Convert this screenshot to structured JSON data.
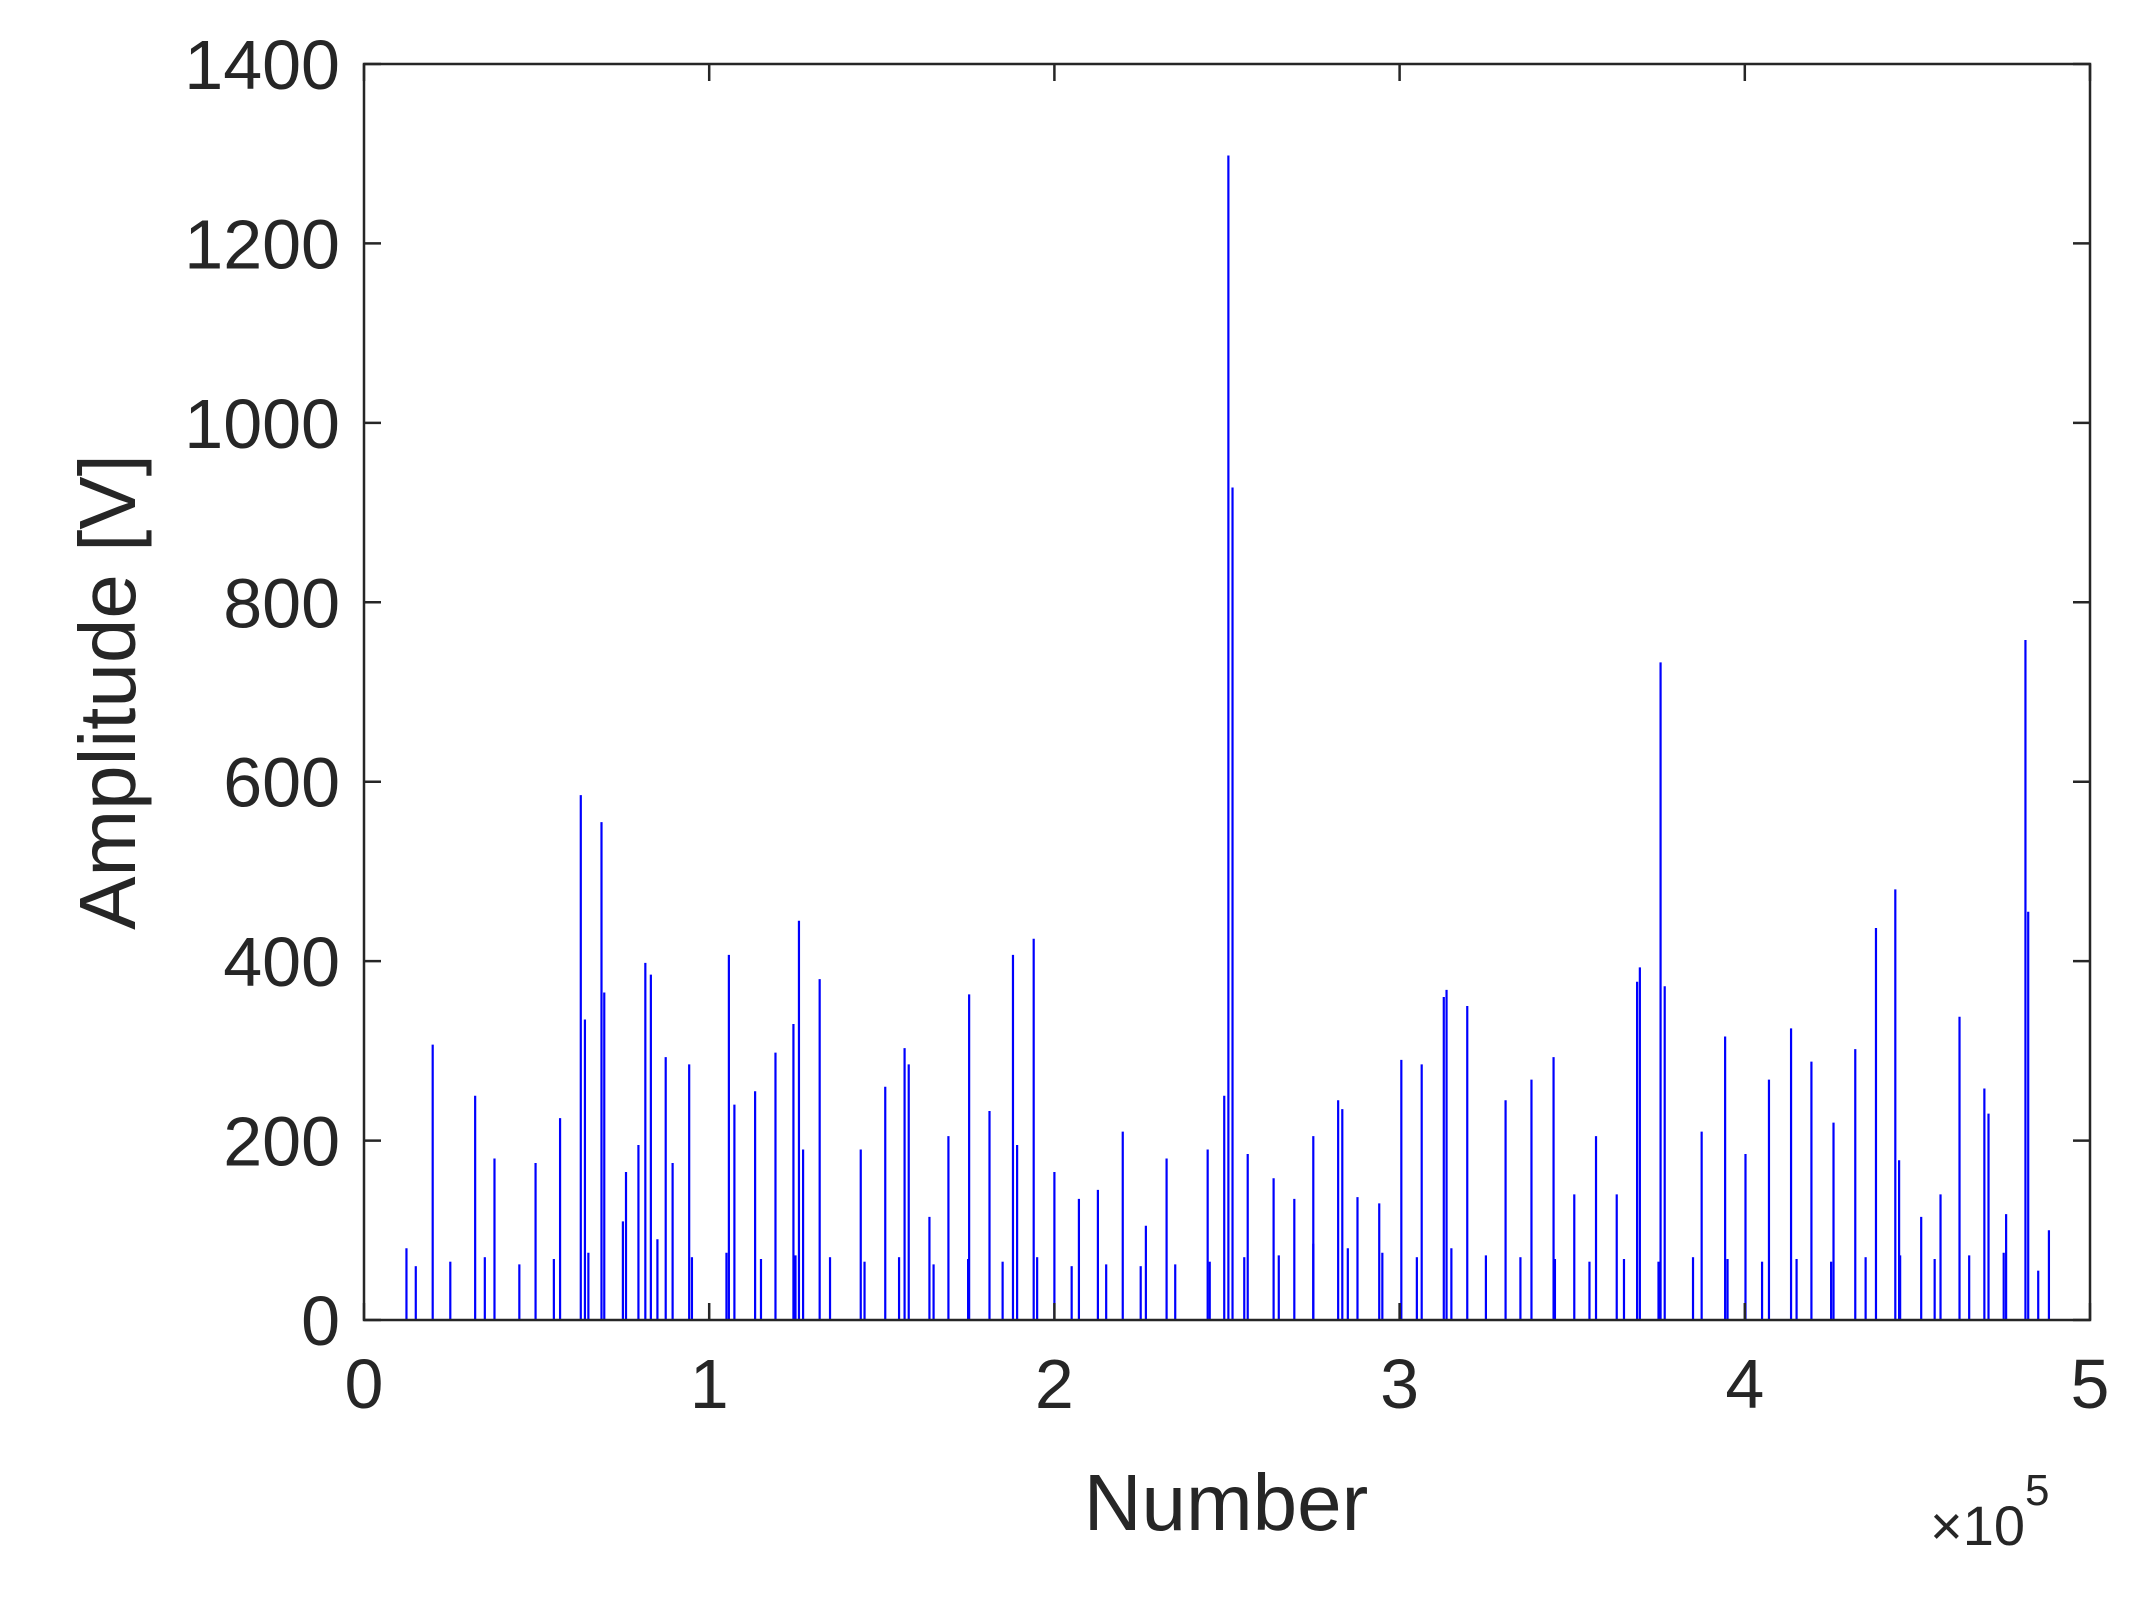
{
  "chart_data": {
    "type": "stem",
    "xlabel": "Number",
    "ylabel": "Amplitude [V]",
    "x_multiplier": "×10",
    "x_multiplier_exponent": "5",
    "color": "#0000ff",
    "xlim": [
      0,
      500000
    ],
    "ylim": [
      0,
      1400
    ],
    "xticks": [
      0,
      {
        "value": 100000,
        "label": "1"
      },
      {
        "value": 200000,
        "label": "2"
      },
      {
        "value": 300000,
        "label": "3"
      },
      {
        "value": 400000,
        "label": "4"
      },
      {
        "value": 500000,
        "label": "5"
      }
    ],
    "yticks": [
      0,
      200,
      400,
      600,
      800,
      1000,
      1200,
      1400
    ],
    "x": [
      12300,
      19900,
      32200,
      37800,
      49700,
      56800,
      62800,
      64000,
      68800,
      69600,
      75900,
      79500,
      81500,
      83100,
      87400,
      89400,
      94200,
      105700,
      107300,
      113300,
      119200,
      124400,
      126000,
      127200,
      132000,
      143900,
      151000,
      156600,
      157800,
      163800,
      169300,
      175300,
      181200,
      188000,
      189200,
      194000,
      200000,
      207100,
      212600,
      219800,
      226500,
      232500,
      244400,
      249200,
      250400,
      251600,
      256000,
      263500,
      269500,
      275000,
      282200,
      283400,
      287800,
      294100,
      300500,
      306400,
      312800,
      313600,
      319600,
      330700,
      338200,
      344600,
      350600,
      356900,
      362900,
      368800,
      369600,
      375600,
      376800,
      387500,
      394300,
      400200,
      407000,
      413400,
      419300,
      425700,
      432000,
      438000,
      443600,
      444700,
      451100,
      456700,
      462200,
      469400,
      470600,
      475700,
      481300,
      482100,
      488100,
      15000,
      25000,
      35000,
      45000,
      55000,
      65000,
      75000,
      85000,
      95000,
      105000,
      115000,
      125000,
      135000,
      145000,
      155000,
      165000,
      175000,
      185000,
      195000,
      205000,
      215000,
      225000,
      235000,
      245000,
      255000,
      265000,
      275000,
      285000,
      295000,
      305000,
      315000,
      325000,
      335000,
      345000,
      355000,
      365000,
      375000,
      385000,
      395000,
      405000,
      415000,
      425000,
      435000,
      445000,
      455000,
      465000,
      475000,
      485000
    ],
    "values": [
      80,
      307,
      250,
      180,
      175,
      225,
      585,
      335,
      555,
      365,
      165,
      195,
      398,
      385,
      293,
      175,
      285,
      407,
      240,
      255,
      298,
      330,
      445,
      190,
      380,
      190,
      260,
      303,
      285,
      115,
      205,
      363,
      233,
      407,
      195,
      425,
      165,
      135,
      145,
      210,
      105,
      180,
      190,
      250,
      1298,
      928,
      185,
      158,
      135,
      205,
      245,
      235,
      137,
      130,
      290,
      285,
      360,
      368,
      350,
      245,
      268,
      293,
      140,
      205,
      140,
      377,
      393,
      733,
      372,
      210,
      316,
      185,
      268,
      325,
      288,
      220,
      302,
      437,
      480,
      178,
      115,
      140,
      338,
      258,
      230,
      118,
      758,
      455,
      100,
      60,
      65,
      70,
      62,
      68,
      75,
      110,
      90,
      70,
      75,
      68,
      72,
      70,
      65,
      70,
      62,
      68,
      65,
      70,
      60,
      62,
      60,
      62,
      65,
      70,
      72,
      85,
      80,
      75,
      70,
      80,
      72,
      70,
      68,
      65,
      68,
      65,
      70,
      68,
      65,
      68,
      65,
      70,
      72,
      68,
      72,
      75,
      55
    ]
  }
}
